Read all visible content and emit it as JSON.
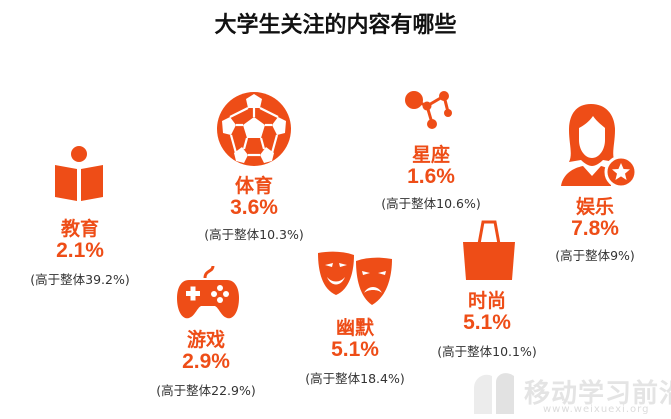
{
  "title": "大学生关注的内容有哪些",
  "accent_color": "#ee4d17",
  "items": [
    {
      "label": "教育",
      "pct": "2.1%",
      "note": "(高于整体39.2%)",
      "icon": "book-reader-icon"
    },
    {
      "label": "体育",
      "pct": "3.6%",
      "note": "(高于整体10.3%)",
      "icon": "soccer-ball-icon"
    },
    {
      "label": "星座",
      "pct": "1.6%",
      "note": "(高于整体10.6%)",
      "icon": "constellation-icon"
    },
    {
      "label": "娱乐",
      "pct": "7.8%",
      "note": "(高于整体9%)",
      "icon": "star-person-icon"
    },
    {
      "label": "游戏",
      "pct": "2.9%",
      "note": "(高于整体22.9%)",
      "icon": "gamepad-icon"
    },
    {
      "label": "幽默",
      "pct": "5.1%",
      "note": "(高于整体18.4%)",
      "icon": "theater-masks-icon"
    },
    {
      "label": "时尚",
      "pct": "5.1%",
      "note": "(高于整体10.1%)",
      "icon": "shopping-bag-icon"
    }
  ],
  "watermark": {
    "text": "移动学习前沿",
    "url": "www.weixuexi.org"
  }
}
